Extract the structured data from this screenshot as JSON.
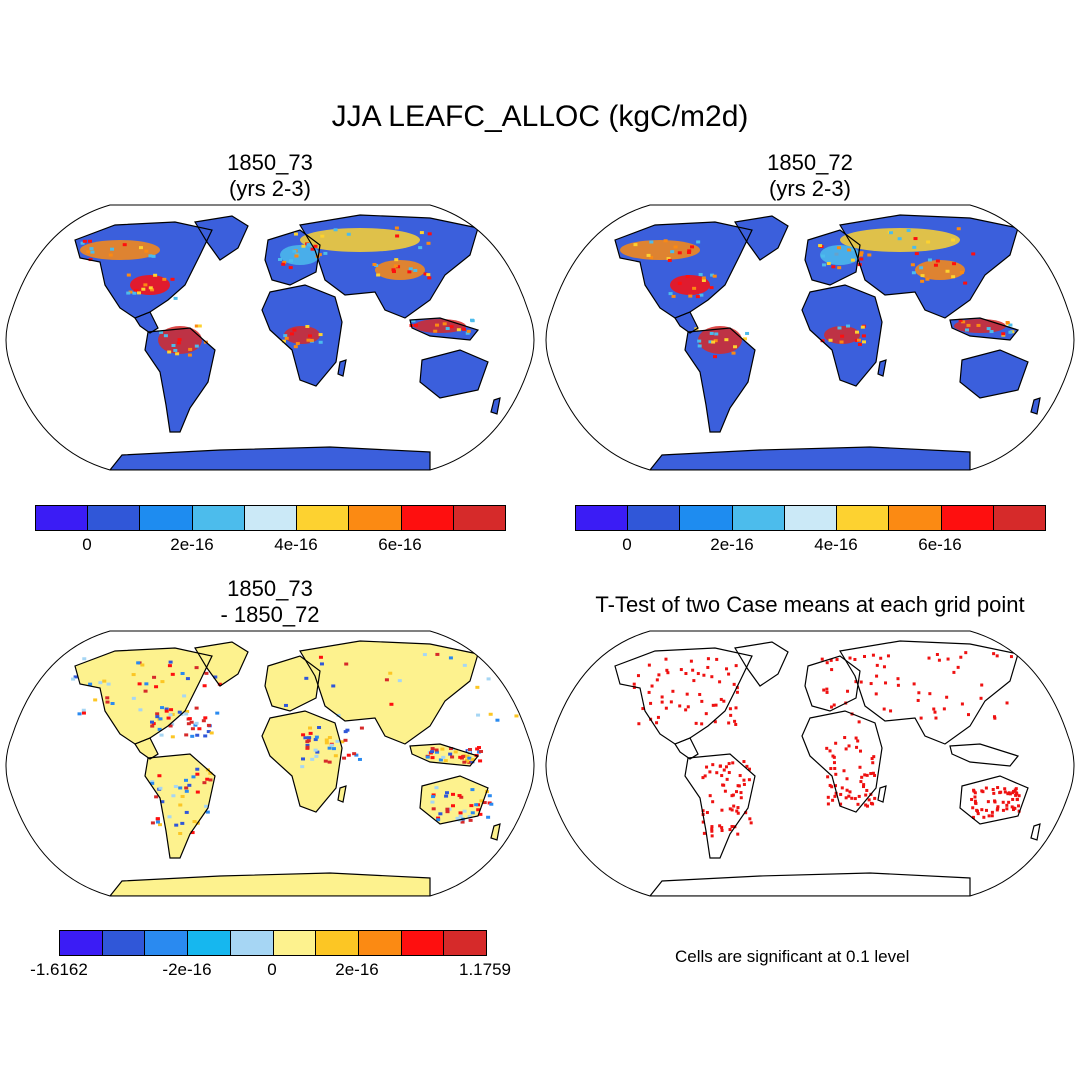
{
  "title": "JJA LEAFC_ALLOC (kgC/m2d)",
  "panels": {
    "p1": {
      "title_line1": "1850_73",
      "title_line2": "(yrs 2-3)"
    },
    "p2": {
      "title_line1": "1850_72",
      "title_line2": "(yrs 2-3)"
    },
    "p3": {
      "title_line1": "1850_73",
      "title_line2": "- 1850_72"
    },
    "p4": {
      "title": "T-Test of two Case means at each grid point",
      "note": "Cells are significant at 0.1 level"
    }
  },
  "colorbars": {
    "abs": {
      "colors": [
        "#3b1cf5",
        "#3057d8",
        "#1e8cf0",
        "#4cbcec",
        "#cbe9f7",
        "#fdd230",
        "#fb8a13",
        "#fe0f0f",
        "#d62a2a"
      ],
      "labels": [
        "0",
        "2e-16",
        "4e-16",
        "6e-16"
      ]
    },
    "diff": {
      "colors": [
        "#3b1cf5",
        "#3057d8",
        "#2a8af0",
        "#16b7ef",
        "#a6d6f4",
        "#fdf28e",
        "#fcc624",
        "#fb8a13",
        "#fe0f0f",
        "#d62a2a"
      ],
      "labels": [
        "-1.6162",
        "-2e-16",
        "0",
        "2e-16",
        "1.1759"
      ]
    }
  },
  "colors": {
    "ocean": "#ffffff",
    "land_low": "#3b5fdc",
    "land_high": "#d62a2a",
    "diff_land": "#fdf28e",
    "significant": "#ee1111"
  }
}
